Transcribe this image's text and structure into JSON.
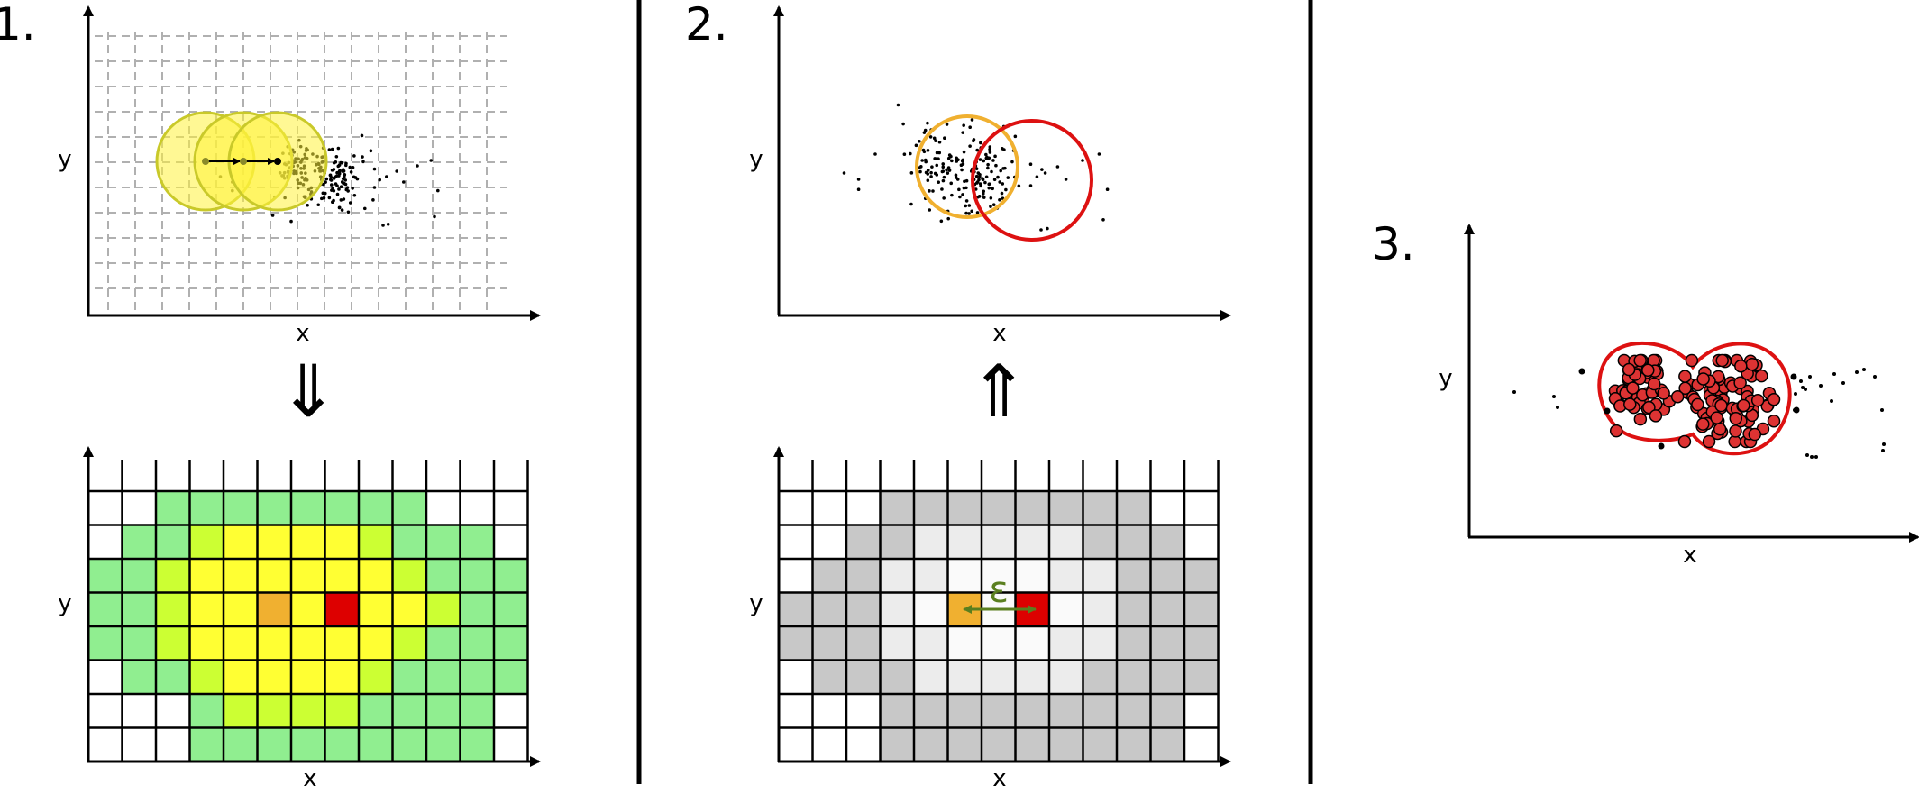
{
  "panels": [
    {
      "step_label": "1.",
      "plot_x_label": "x",
      "plot_y_label": "y",
      "grid_x_label": "x",
      "grid_y_label": "y",
      "arrow_glyph": "⇓"
    },
    {
      "step_label": "2.",
      "plot_x_label": "x",
      "plot_y_label": "y",
      "grid_x_label": "x",
      "grid_y_label": "y",
      "arrow_glyph": "⇑",
      "epsilon_label": "ε"
    },
    {
      "step_label": "3.",
      "plot_x_label": "x",
      "plot_y_label": "y"
    }
  ],
  "colors": {
    "axis": "#000000",
    "dashed_grid": "#b0b0b0",
    "kernel_fill": "#fff23c",
    "kernel_stroke": "#c9c92a",
    "density_low": "#90ee90",
    "density_mid": "#ccff33",
    "density_high": "#ffff33",
    "seed_cell": "#f0b030",
    "target_cell": "#dd0000",
    "gray_region": "#c8c8c8",
    "light_region": "#ececec",
    "center_region": "#fafafa",
    "circle_orange": "#f0b030",
    "circle_red": "#dd1111",
    "cluster_point": "#dd3333",
    "epsilon_arrow": "#5a7f1f"
  }
}
